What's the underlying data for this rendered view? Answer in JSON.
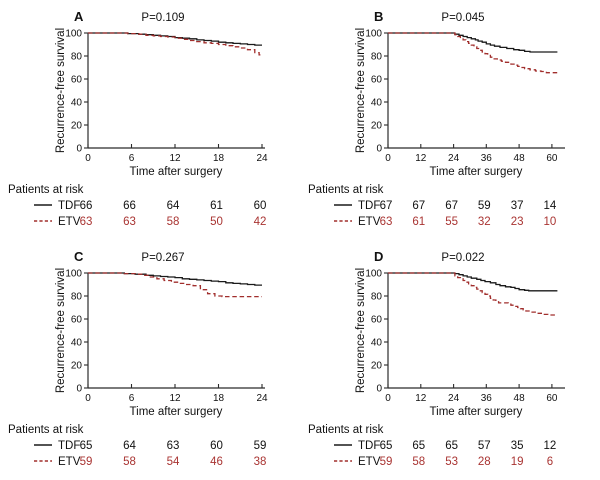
{
  "figure": {
    "background": "#ffffff",
    "text_color": "#111111",
    "axis_color": "#2b2b2b",
    "tdf_color": "#1a1a1a",
    "etv_color": "#a12e2c",
    "etv_number_color": "#a93432",
    "ylabel": "Recurrence-free survival",
    "xlabel": "Time after surgery",
    "at_risk_label": "Patients at risk"
  },
  "chart_data": [
    {
      "type": "line",
      "subtype": "kaplan-meier-step",
      "panel_label": "A",
      "title": "P=0.109",
      "xlabel": "Time after surgery",
      "ylabel": "Recurrence-free survival",
      "xticks": [
        0,
        6,
        12,
        18,
        24
      ],
      "yticks": [
        0,
        20,
        40,
        60,
        80,
        100
      ],
      "xlim": [
        0,
        24
      ],
      "ylim": [
        0,
        100
      ],
      "x_axis_scale_max": 24,
      "curve_end": 24,
      "grid": false,
      "legend_position": "below-left",
      "series": [
        {
          "name": "TDF",
          "style": "solid",
          "points": [
            [
              0,
              100
            ],
            [
              5.5,
              99.5
            ],
            [
              7,
              99
            ],
            [
              8,
              98.5
            ],
            [
              9,
              98
            ],
            [
              10,
              97.5
            ],
            [
              11,
              97
            ],
            [
              12,
              96
            ],
            [
              13,
              95.5
            ],
            [
              14,
              95
            ],
            [
              15,
              94
            ],
            [
              16,
              93.5
            ],
            [
              17,
              93
            ],
            [
              18,
              92
            ],
            [
              19,
              91.5
            ],
            [
              20,
              91
            ],
            [
              21,
              90.5
            ],
            [
              22,
              90
            ],
            [
              23,
              89.5
            ]
          ]
        },
        {
          "name": "ETV",
          "style": "dashed",
          "points": [
            [
              0,
              100
            ],
            [
              5.5,
              99.5
            ],
            [
              7,
              99
            ],
            [
              8,
              98
            ],
            [
              9,
              97.5
            ],
            [
              10,
              97
            ],
            [
              11,
              96.5
            ],
            [
              12,
              95.5
            ],
            [
              13,
              94.5
            ],
            [
              14,
              93.5
            ],
            [
              15,
              92.5
            ],
            [
              16,
              91.5
            ],
            [
              17,
              91
            ],
            [
              18,
              90
            ],
            [
              19,
              89
            ],
            [
              20,
              88
            ],
            [
              21,
              87
            ],
            [
              22,
              85.5
            ],
            [
              23,
              83
            ],
            [
              23.6,
              81
            ]
          ]
        }
      ],
      "at_risk": {
        "rows": [
          {
            "name": "TDF",
            "style": "solid",
            "counts": [
              "66",
              "66",
              "64",
              "61",
              "60"
            ]
          },
          {
            "name": "ETV",
            "style": "dashed",
            "counts": [
              "63",
              "63",
              "58",
              "50",
              "42"
            ]
          }
        ]
      }
    },
    {
      "type": "line",
      "subtype": "kaplan-meier-step",
      "panel_label": "B",
      "title": "P=0.045",
      "xlabel": "Time after surgery",
      "ylabel": "Recurrence-free survival",
      "xticks": [
        0,
        12,
        24,
        36,
        48,
        60
      ],
      "yticks": [
        0,
        20,
        40,
        60,
        80,
        100
      ],
      "xlim": [
        0,
        62
      ],
      "ylim": [
        0,
        100
      ],
      "x_axis_scale_max": 63.7,
      "curve_end": 62,
      "grid": false,
      "legend_position": "below-left",
      "series": [
        {
          "name": "TDF",
          "style": "solid",
          "points": [
            [
              0,
              100
            ],
            [
              24.5,
              99
            ],
            [
              26,
              98
            ],
            [
              27.5,
              97
            ],
            [
              29,
              96
            ],
            [
              30.5,
              95
            ],
            [
              32,
              94
            ],
            [
              33,
              93
            ],
            [
              34.5,
              92
            ],
            [
              36,
              90.5
            ],
            [
              37.5,
              89.5
            ],
            [
              39,
              88.5
            ],
            [
              41,
              87.5
            ],
            [
              43.5,
              86.5
            ],
            [
              46,
              85.5
            ],
            [
              48,
              85
            ],
            [
              50,
              84
            ],
            [
              52,
              83.5
            ]
          ]
        },
        {
          "name": "ETV",
          "style": "dashed",
          "points": [
            [
              0,
              100
            ],
            [
              24.5,
              98.5
            ],
            [
              25.5,
              97
            ],
            [
              26.5,
              95.5
            ],
            [
              27.5,
              94
            ],
            [
              28.5,
              92.5
            ],
            [
              29.5,
              91
            ],
            [
              30.5,
              89.5
            ],
            [
              31.5,
              88
            ],
            [
              32.5,
              86.5
            ],
            [
              33.5,
              85
            ],
            [
              34.5,
              83.5
            ],
            [
              35.5,
              82
            ],
            [
              36.5,
              80.5
            ],
            [
              37.5,
              79
            ],
            [
              38.5,
              77.5
            ],
            [
              40,
              76.5
            ],
            [
              41.5,
              75.5
            ],
            [
              43,
              74.5
            ],
            [
              45,
              73
            ],
            [
              46.5,
              72
            ],
            [
              47.5,
              71
            ],
            [
              48.5,
              70
            ],
            [
              50,
              69
            ],
            [
              52,
              68
            ],
            [
              54,
              67
            ],
            [
              56,
              66.5
            ],
            [
              58,
              65.5
            ]
          ]
        }
      ],
      "at_risk": {
        "rows": [
          {
            "name": "TDF",
            "style": "solid",
            "counts": [
              "67",
              "67",
              "67",
              "59",
              "37",
              "14"
            ]
          },
          {
            "name": "ETV",
            "style": "dashed",
            "counts": [
              "63",
              "61",
              "55",
              "32",
              "23",
              "10"
            ]
          }
        ]
      }
    },
    {
      "type": "line",
      "subtype": "kaplan-meier-step",
      "panel_label": "C",
      "title": "P=0.267",
      "xlabel": "Time after surgery",
      "ylabel": "Recurrence-free survival",
      "xticks": [
        0,
        6,
        12,
        18,
        24
      ],
      "yticks": [
        0,
        20,
        40,
        60,
        80,
        100
      ],
      "xlim": [
        0,
        24
      ],
      "ylim": [
        0,
        100
      ],
      "x_axis_scale_max": 24,
      "curve_end": 24,
      "grid": false,
      "legend_position": "below-left",
      "series": [
        {
          "name": "TDF",
          "style": "solid",
          "points": [
            [
              0,
              100
            ],
            [
              5,
              99.5
            ],
            [
              6.5,
              99
            ],
            [
              8,
              98
            ],
            [
              9,
              97.5
            ],
            [
              10,
              97
            ],
            [
              11,
              96.5
            ],
            [
              12,
              96
            ],
            [
              13,
              95
            ],
            [
              14,
              94.5
            ],
            [
              15,
              94
            ],
            [
              16,
              93.5
            ],
            [
              17,
              93
            ],
            [
              18,
              92.5
            ],
            [
              19,
              91.5
            ],
            [
              20,
              91
            ],
            [
              21,
              90.5
            ],
            [
              22,
              90
            ],
            [
              23,
              89.5
            ]
          ]
        },
        {
          "name": "ETV",
          "style": "dashed",
          "points": [
            [
              0,
              100
            ],
            [
              5,
              99.5
            ],
            [
              6.5,
              99
            ],
            [
              7.5,
              98
            ],
            [
              8.5,
              96.5
            ],
            [
              9.5,
              95
            ],
            [
              10.5,
              93.5
            ],
            [
              11.5,
              92
            ],
            [
              12.5,
              91
            ],
            [
              13.5,
              90
            ],
            [
              14.5,
              89
            ],
            [
              15.5,
              85.5
            ],
            [
              16.5,
              82
            ],
            [
              17.5,
              80
            ],
            [
              18.5,
              79.5
            ]
          ]
        }
      ],
      "at_risk": {
        "rows": [
          {
            "name": "TDF",
            "style": "solid",
            "counts": [
              "65",
              "64",
              "63",
              "60",
              "59"
            ]
          },
          {
            "name": "ETV",
            "style": "dashed",
            "counts": [
              "59",
              "58",
              "54",
              "46",
              "38"
            ]
          }
        ]
      }
    },
    {
      "type": "line",
      "subtype": "kaplan-meier-step",
      "panel_label": "D",
      "title": "P=0.022",
      "xlabel": "Time after surgery",
      "ylabel": "Recurrence-free survival",
      "xticks": [
        0,
        12,
        24,
        36,
        48,
        60
      ],
      "yticks": [
        0,
        20,
        40,
        60,
        80,
        100
      ],
      "xlim": [
        0,
        62
      ],
      "ylim": [
        0,
        100
      ],
      "x_axis_scale_max": 63.7,
      "curve_end": 62,
      "grid": false,
      "legend_position": "below-left",
      "series": [
        {
          "name": "TDF",
          "style": "solid",
          "points": [
            [
              0,
              100
            ],
            [
              24.5,
              99.5
            ],
            [
              26,
              98.5
            ],
            [
              27.5,
              97.5
            ],
            [
              29,
              96.5
            ],
            [
              30.5,
              95.5
            ],
            [
              32.5,
              94.5
            ],
            [
              34,
              93.5
            ],
            [
              35.5,
              92.5
            ],
            [
              37.5,
              91.5
            ],
            [
              39.5,
              90
            ],
            [
              41,
              89
            ],
            [
              43,
              88
            ],
            [
              45,
              87.5
            ],
            [
              46.5,
              86.5
            ],
            [
              48,
              85.5
            ],
            [
              50,
              85
            ],
            [
              51.5,
              84.5
            ]
          ]
        },
        {
          "name": "ETV",
          "style": "dashed",
          "points": [
            [
              0,
              100
            ],
            [
              24.5,
              97.5
            ],
            [
              25.5,
              96
            ],
            [
              26.5,
              95
            ],
            [
              27.5,
              93.5
            ],
            [
              28.5,
              92
            ],
            [
              29.5,
              90.5
            ],
            [
              30.5,
              89
            ],
            [
              31.5,
              87.5
            ],
            [
              32.5,
              86
            ],
            [
              33.5,
              84.5
            ],
            [
              34.5,
              83
            ],
            [
              35.5,
              81.5
            ],
            [
              36.5,
              80
            ],
            [
              37.5,
              78
            ],
            [
              38.5,
              76.5
            ],
            [
              39.5,
              75
            ],
            [
              40.5,
              74
            ],
            [
              44,
              73
            ],
            [
              45,
              72
            ],
            [
              46,
              71
            ],
            [
              47.5,
              70
            ],
            [
              48.5,
              69
            ],
            [
              49.5,
              68
            ],
            [
              50.5,
              67
            ],
            [
              52.5,
              66
            ],
            [
              55,
              65
            ],
            [
              57,
              64
            ],
            [
              58.5,
              63.5
            ]
          ]
        }
      ],
      "at_risk": {
        "rows": [
          {
            "name": "TDF",
            "style": "solid",
            "counts": [
              "65",
              "65",
              "65",
              "57",
              "35",
              "12"
            ]
          },
          {
            "name": "ETV",
            "style": "dashed",
            "counts": [
              "59",
              "58",
              "53",
              "28",
              "19",
              "6"
            ]
          }
        ]
      }
    }
  ]
}
